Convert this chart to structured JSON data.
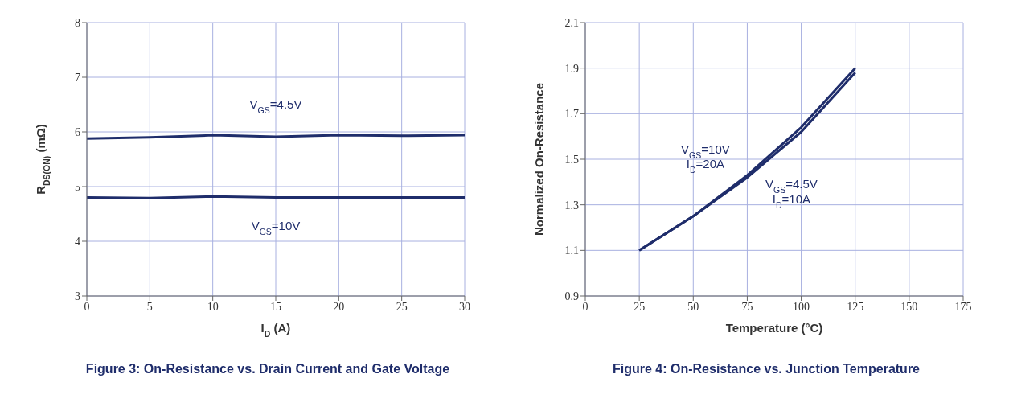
{
  "chart_data": [
    {
      "type": "line",
      "title": "Figure 3: On-Resistance vs. Drain Current and Gate Voltage",
      "xlabel": "I$_{D}$ (A)",
      "ylabel": "R$_{DS(ON)}$ (mΩ)",
      "x": [
        0,
        5,
        10,
        15,
        20,
        25,
        30
      ],
      "series": [
        {
          "name": "V$_{GS}$=4.5V",
          "color": "#1f2d6b",
          "values": [
            5.88,
            5.9,
            5.94,
            5.91,
            5.94,
            5.93,
            5.94
          ]
        },
        {
          "name": "V$_{GS}$=10V",
          "color": "#1f2d6b",
          "values": [
            4.8,
            4.79,
            4.82,
            4.8,
            4.8,
            4.8,
            4.8
          ]
        }
      ],
      "xlim": [
        0,
        30
      ],
      "xticks": [
        0,
        5,
        10,
        15,
        20,
        25,
        30
      ],
      "ylim": [
        3,
        8
      ],
      "yticks": [
        3,
        4,
        5,
        6,
        7,
        8
      ],
      "grid": true,
      "legend": false
    },
    {
      "type": "line",
      "title": "Figure 4: On-Resistance vs. Junction Temperature",
      "xlabel": "Temperature (°C)",
      "ylabel": "Normalized On-Resistance",
      "x": [
        25,
        50,
        75,
        100,
        125
      ],
      "series": [
        {
          "name": "V$_{GS}$=10V\nI$_{D}$=20A",
          "color": "#1f2d6b",
          "values": [
            1.1,
            1.25,
            1.42,
            1.62,
            1.88
          ]
        },
        {
          "name": "V$_{GS}$=4.5V\nI$_{D}$=10A",
          "color": "#1f2d6b",
          "values": [
            1.1,
            1.25,
            1.43,
            1.64,
            1.9
          ]
        }
      ],
      "xlim": [
        0,
        175
      ],
      "xticks": [
        0,
        25,
        50,
        75,
        100,
        125,
        150,
        175
      ],
      "ylim": [
        0.9,
        2.1
      ],
      "yticks": [
        0.9,
        1.1,
        1.3,
        1.5,
        1.7,
        1.9,
        2.1
      ],
      "grid": true,
      "legend": false
    }
  ]
}
